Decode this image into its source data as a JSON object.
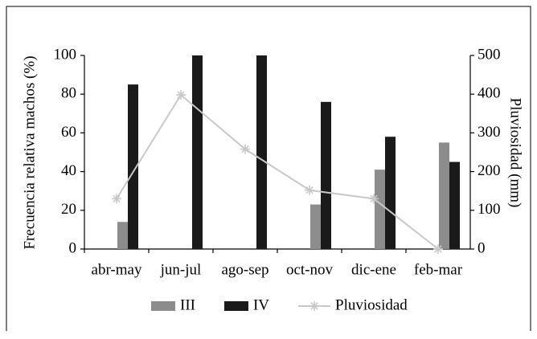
{
  "chart_data": {
    "type": "bar",
    "y_label": "Frecuencia relativa machos (%)",
    "y2_label": "Pluviosidad (mm)",
    "categories": [
      "abr-may",
      "jun-jul",
      "ago-sep",
      "oct-nov",
      "dic-ene",
      "feb-mar"
    ],
    "series": [
      {
        "name": "III",
        "color": "#8c8c8c",
        "values": [
          14,
          0,
          0,
          23,
          41,
          55
        ]
      },
      {
        "name": "IV",
        "color": "#1a1a1a",
        "values": [
          85,
          100,
          100,
          76,
          58,
          45
        ]
      },
      {
        "name": "Pluviosidad",
        "type": "line",
        "axis": "y2",
        "color": "#c8c8c8",
        "values": [
          130,
          398,
          258,
          152,
          130,
          0
        ]
      }
    ],
    "ylim": [
      0,
      100
    ],
    "yticks": [
      0,
      20,
      40,
      60,
      80,
      100
    ],
    "y2lim": [
      0,
      500
    ],
    "y2ticks": [
      0,
      100,
      200,
      300,
      400,
      500
    ],
    "legend": "bottom"
  }
}
